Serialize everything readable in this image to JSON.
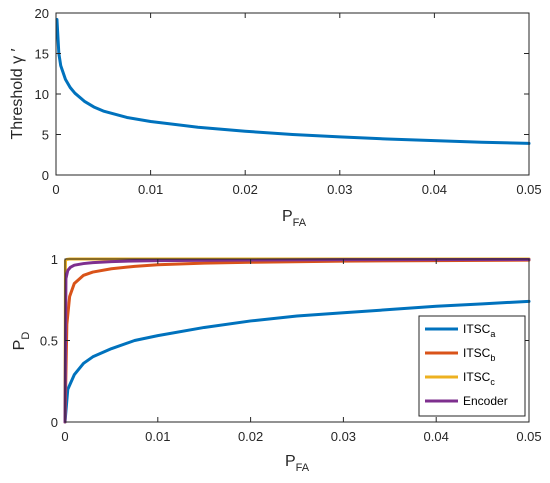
{
  "chart_data": [
    {
      "type": "line",
      "xlabel": "P",
      "xlabel_sub": "FA",
      "ylabel": "Threshold γ ′",
      "xlim": [
        0,
        0.05
      ],
      "ylim": [
        0,
        20
      ],
      "xticks": [
        "0",
        "0.01",
        "0.02",
        "0.03",
        "0.04",
        "0.05"
      ],
      "yticks": [
        "0",
        "5",
        "10",
        "15",
        "20"
      ],
      "grid": false,
      "series": [
        {
          "color": "#0072BD",
          "x": [
            0.0001,
            0.0003,
            0.0005,
            0.001,
            0.0015,
            0.002,
            0.003,
            0.004,
            0.005,
            0.0075,
            0.01,
            0.015,
            0.02,
            0.025,
            0.03,
            0.035,
            0.04,
            0.045,
            0.05
          ],
          "y": [
            19.2,
            15.0,
            13.5,
            11.8,
            10.8,
            10.1,
            9.1,
            8.4,
            7.9,
            7.1,
            6.6,
            5.9,
            5.4,
            5.0,
            4.7,
            4.45,
            4.25,
            4.05,
            3.9
          ]
        }
      ]
    },
    {
      "type": "line",
      "xlabel": "P",
      "xlabel_sub": "FA",
      "ylabel": "P",
      "ylabel_sub": "D",
      "xlim": [
        0,
        0.05
      ],
      "ylim": [
        0,
        1
      ],
      "xticks": [
        "0",
        "0.01",
        "0.02",
        "0.03",
        "0.04",
        "0.05"
      ],
      "yticks": [
        "0",
        "0.5",
        "1"
      ],
      "grid": false,
      "legend_position": "bottom-right",
      "series": [
        {
          "name": "ITSC",
          "name_sub": "a",
          "color": "#0072BD",
          "x": [
            0,
            0.0003,
            0.001,
            0.002,
            0.003,
            0.005,
            0.0075,
            0.01,
            0.015,
            0.02,
            0.025,
            0.03,
            0.035,
            0.04,
            0.045,
            0.05
          ],
          "y": [
            0,
            0.2,
            0.29,
            0.36,
            0.4,
            0.45,
            0.5,
            0.53,
            0.58,
            0.62,
            0.65,
            0.67,
            0.69,
            0.71,
            0.725,
            0.74
          ]
        },
        {
          "name": "ITSC",
          "name_sub": "b",
          "color": "#D95319",
          "x": [
            0,
            0.0002,
            0.0005,
            0.001,
            0.002,
            0.003,
            0.005,
            0.0075,
            0.01,
            0.015,
            0.02,
            0.03,
            0.04,
            0.05
          ],
          "y": [
            0,
            0.6,
            0.77,
            0.85,
            0.9,
            0.92,
            0.94,
            0.955,
            0.965,
            0.975,
            0.98,
            0.987,
            0.99,
            0.993
          ]
        },
        {
          "name": "ITSC",
          "name_sub": "c",
          "color": "#EDB120",
          "x": [
            0,
            5e-05,
            0.0002,
            0.0005,
            0.01,
            0.05
          ],
          "y": [
            0,
            0.99,
            0.998,
            1.0,
            1.0,
            1.0
          ]
        },
        {
          "name": "Encoder",
          "color": "#7E2F8E",
          "x": [
            0,
            0.0001,
            0.0003,
            0.0006,
            0.001,
            0.002,
            0.003,
            0.005,
            0.0075,
            0.01,
            0.02,
            0.03,
            0.05
          ],
          "y": [
            0,
            0.88,
            0.93,
            0.95,
            0.962,
            0.972,
            0.978,
            0.984,
            0.988,
            0.99,
            0.994,
            0.996,
            0.997
          ]
        }
      ]
    }
  ]
}
